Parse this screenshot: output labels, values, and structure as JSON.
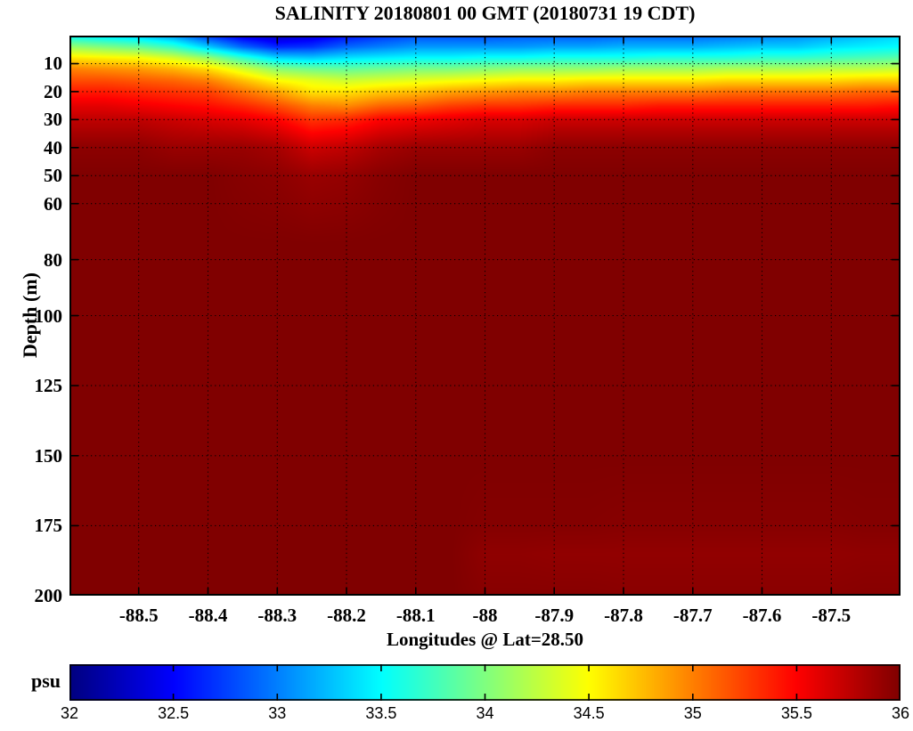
{
  "figure": {
    "title": "SALINITY 20180801 00 GMT (20180731 19 CDT)",
    "background": "#ffffff",
    "frame_color": "#000000"
  },
  "axes": {
    "xlabel": "Longitudes @ Lat=28.50",
    "ylabel": "Depth (m)",
    "xlim": [
      -88.6,
      -87.4
    ],
    "ylim": [
      0,
      200
    ],
    "x_tick_labels": [
      "-88.5",
      "-88.4",
      "-88.3",
      "-88.2",
      "-88.1",
      "-88",
      "-87.9",
      "-87.8",
      "-87.7",
      "-87.6",
      "-87.5"
    ],
    "x_tick_values": [
      -88.5,
      -88.4,
      -88.3,
      -88.2,
      -88.1,
      -88.0,
      -87.9,
      -87.8,
      -87.7,
      -87.6,
      -87.5
    ],
    "y_tick_labels": [
      "10",
      "20",
      "30",
      "40",
      "50",
      "60",
      "80",
      "100",
      "125",
      "150",
      "175",
      "200"
    ],
    "y_tick_values": [
      10,
      20,
      30,
      40,
      50,
      60,
      80,
      100,
      125,
      150,
      175,
      200
    ],
    "grid": "dotted"
  },
  "colorbar": {
    "label": "psu",
    "min": 32,
    "max": 36,
    "colormap": "jet",
    "tick_labels": [
      "32",
      "32.5",
      "33",
      "33.5",
      "34",
      "34.5",
      "35",
      "35.5",
      "36"
    ],
    "tick_values": [
      32,
      32.5,
      33,
      33.5,
      34,
      34.5,
      35,
      35.5,
      36
    ]
  },
  "chart_data": {
    "type": "heatmap",
    "title": "SALINITY 20180801 00 GMT (20180731 19 CDT)",
    "xlabel": "Longitudes @ Lat=28.50",
    "ylabel": "Depth (m)",
    "units": "psu",
    "colormap": "jet",
    "clim": [
      32,
      36
    ],
    "xlim": [
      -88.6,
      -87.4
    ],
    "ylim": [
      0,
      200
    ],
    "lons": [
      -88.6,
      -88.55,
      -88.5,
      -88.45,
      -88.4,
      -88.35,
      -88.3,
      -88.25,
      -88.2,
      -88.15,
      -88.1,
      -88.05,
      -88.0,
      -87.95,
      -87.9,
      -87.85,
      -87.8,
      -87.75,
      -87.7,
      -87.65,
      -87.6,
      -87.55,
      -87.5,
      -87.45,
      -87.4
    ],
    "depths": [
      0,
      4,
      8,
      12,
      16,
      20,
      25,
      30,
      40,
      50,
      75,
      100,
      150,
      175,
      185,
      200
    ],
    "salinity_by_lon": [
      [
        33.5,
        34.1,
        34.6,
        35.0,
        35.2,
        35.4,
        35.6,
        35.75,
        35.95,
        36.0,
        36.0,
        36.0,
        36.0,
        36.0,
        36.0,
        36.0
      ],
      [
        33.4,
        34.0,
        34.55,
        34.95,
        35.2,
        35.4,
        35.6,
        35.75,
        35.95,
        36.0,
        36.0,
        36.0,
        36.0,
        36.0,
        36.0,
        36.0
      ],
      [
        33.3,
        33.9,
        34.5,
        34.9,
        35.15,
        35.35,
        35.55,
        35.75,
        35.95,
        36.0,
        36.0,
        36.0,
        36.0,
        36.0,
        36.0,
        36.0
      ],
      [
        33.1,
        33.7,
        34.35,
        34.8,
        35.1,
        35.3,
        35.5,
        35.7,
        35.9,
        36.0,
        36.0,
        36.0,
        36.0,
        36.0,
        36.0,
        36.0
      ],
      [
        32.7,
        33.3,
        34.1,
        34.65,
        35.0,
        35.25,
        35.45,
        35.65,
        35.9,
        36.0,
        36.0,
        36.0,
        36.0,
        36.0,
        36.0,
        36.0
      ],
      [
        32.4,
        32.9,
        33.7,
        34.35,
        34.75,
        35.05,
        35.35,
        35.6,
        35.9,
        35.97,
        36.0,
        36.0,
        36.0,
        36.0,
        36.0,
        36.0
      ],
      [
        32.25,
        32.65,
        33.35,
        34.05,
        34.5,
        34.85,
        35.2,
        35.5,
        35.85,
        35.95,
        36.0,
        36.0,
        36.0,
        36.0,
        36.0,
        36.0
      ],
      [
        32.35,
        32.7,
        33.3,
        33.95,
        34.4,
        34.6,
        35.0,
        35.3,
        35.7,
        35.9,
        36.0,
        36.0,
        36.0,
        36.0,
        36.0,
        36.0
      ],
      [
        32.55,
        32.9,
        33.4,
        33.9,
        34.3,
        34.6,
        34.95,
        35.35,
        35.75,
        35.92,
        36.0,
        36.0,
        36.0,
        36.0,
        36.0,
        36.0
      ],
      [
        32.7,
        33.0,
        33.45,
        33.95,
        34.35,
        34.7,
        35.1,
        35.5,
        35.85,
        35.97,
        36.0,
        36.0,
        36.0,
        36.0,
        36.0,
        36.0
      ],
      [
        32.8,
        33.1,
        33.5,
        34.0,
        34.4,
        34.75,
        35.15,
        35.55,
        35.9,
        36.0,
        36.0,
        36.0,
        36.0,
        36.0,
        36.0,
        36.0
      ],
      [
        32.8,
        33.1,
        33.5,
        34.0,
        34.45,
        34.85,
        35.25,
        35.6,
        35.9,
        36.0,
        36.0,
        36.0,
        36.0,
        36.0,
        36.0,
        36.0
      ],
      [
        32.8,
        33.1,
        33.55,
        34.05,
        34.5,
        34.9,
        35.3,
        35.65,
        35.9,
        36.0,
        36.0,
        36.0,
        36.0,
        35.98,
        35.94,
        35.97
      ],
      [
        32.85,
        33.1,
        33.55,
        34.1,
        34.55,
        34.95,
        35.3,
        35.65,
        35.9,
        36.0,
        36.0,
        36.0,
        36.0,
        35.98,
        35.94,
        35.97
      ],
      [
        32.85,
        33.15,
        33.6,
        34.1,
        34.55,
        34.95,
        35.35,
        35.7,
        35.95,
        36.0,
        36.0,
        36.0,
        36.0,
        35.98,
        35.93,
        35.97
      ],
      [
        32.85,
        33.15,
        33.6,
        34.1,
        34.6,
        35.0,
        35.35,
        35.7,
        35.95,
        36.0,
        36.0,
        36.0,
        36.0,
        35.98,
        35.93,
        35.97
      ],
      [
        32.9,
        33.2,
        33.6,
        34.15,
        34.6,
        35.0,
        35.35,
        35.7,
        35.95,
        36.0,
        36.0,
        36.0,
        36.0,
        35.97,
        35.93,
        35.96
      ],
      [
        32.9,
        33.2,
        33.65,
        34.15,
        34.6,
        35.0,
        35.4,
        35.7,
        35.95,
        36.0,
        36.0,
        36.0,
        36.0,
        35.97,
        35.93,
        35.96
      ],
      [
        32.9,
        33.2,
        33.65,
        34.15,
        34.6,
        35.0,
        35.4,
        35.7,
        35.95,
        36.0,
        36.0,
        36.0,
        36.0,
        35.97,
        35.93,
        35.96
      ],
      [
        32.95,
        33.25,
        33.65,
        34.2,
        34.65,
        35.05,
        35.4,
        35.7,
        35.95,
        36.0,
        36.0,
        36.0,
        36.0,
        35.97,
        35.93,
        35.96
      ],
      [
        33.0,
        33.3,
        33.7,
        34.2,
        34.65,
        35.05,
        35.4,
        35.7,
        35.95,
        36.0,
        36.0,
        36.0,
        36.0,
        35.97,
        35.93,
        35.96
      ],
      [
        33.05,
        33.3,
        33.7,
        34.2,
        34.65,
        35.05,
        35.4,
        35.7,
        35.95,
        36.0,
        36.0,
        36.0,
        36.0,
        35.97,
        35.93,
        35.96
      ],
      [
        33.15,
        33.4,
        33.75,
        34.25,
        34.65,
        35.05,
        35.4,
        35.7,
        35.95,
        36.0,
        36.0,
        36.0,
        36.0,
        35.97,
        35.93,
        35.96
      ],
      [
        33.25,
        33.45,
        33.8,
        34.25,
        34.7,
        35.1,
        35.4,
        35.7,
        35.95,
        36.0,
        36.0,
        36.0,
        36.0,
        35.98,
        35.94,
        35.97
      ],
      [
        33.35,
        33.5,
        33.85,
        34.3,
        34.7,
        35.1,
        35.45,
        35.7,
        35.95,
        36.0,
        36.0,
        36.0,
        36.0,
        35.98,
        35.94,
        35.97
      ]
    ]
  }
}
